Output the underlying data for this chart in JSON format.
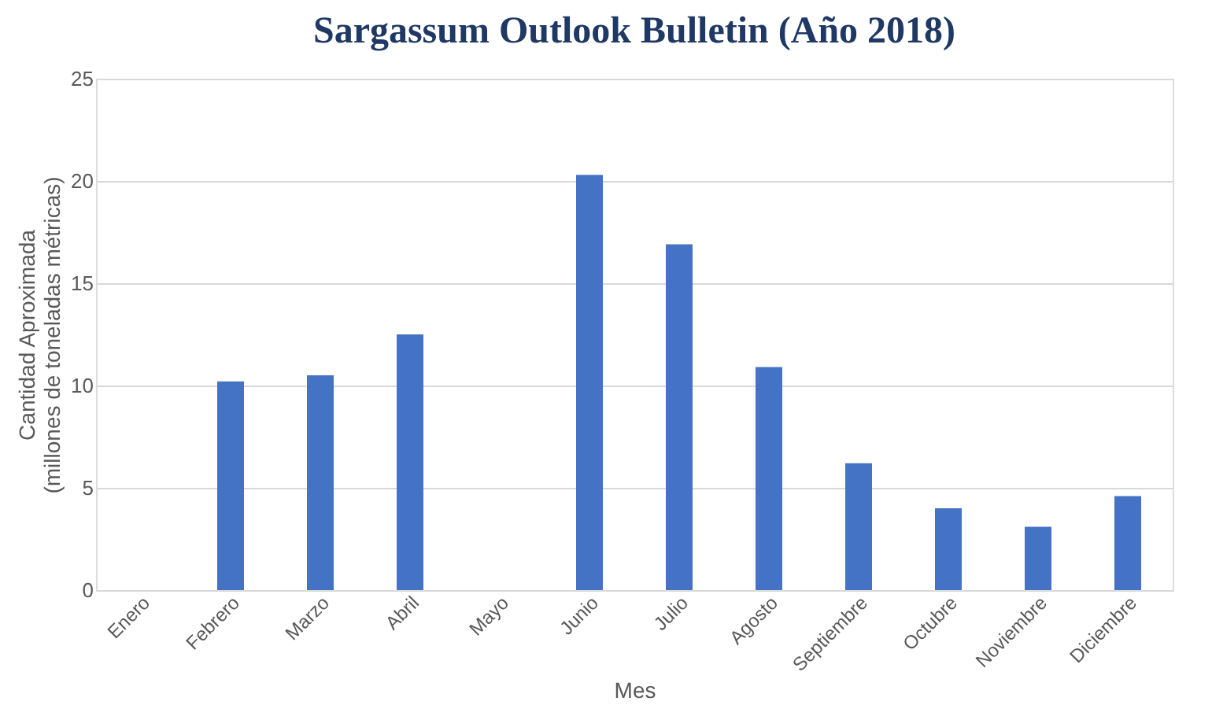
{
  "chart_data": {
    "type": "bar",
    "title": "Sargassum Outlook Bulletin (Año 2018)",
    "xlabel": "Mes",
    "ylabel": "Cantidad Aproximada\n(millones de toneladas métricas)",
    "categories": [
      "Enero",
      "Febrero",
      "Marzo",
      "Abril",
      "Mayo",
      "Junio",
      "Julio",
      "Agosto",
      "Septiembre",
      "Octubre",
      "Noviembre",
      "Diciembre"
    ],
    "values": [
      null,
      10.2,
      10.5,
      12.5,
      null,
      20.3,
      16.9,
      10.9,
      6.2,
      4.0,
      3.1,
      4.6
    ],
    "color": "#4472c4",
    "ylim": [
      0,
      25
    ],
    "yticks": [
      0,
      5,
      10,
      15,
      20,
      25
    ],
    "grid": "y"
  }
}
